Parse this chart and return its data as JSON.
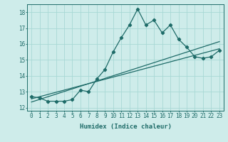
{
  "title": "",
  "xlabel": "Humidex (Indice chaleur)",
  "ylabel": "",
  "xlim": [
    -0.5,
    23.5
  ],
  "ylim": [
    11.8,
    18.5
  ],
  "yticks": [
    12,
    13,
    14,
    15,
    16,
    17,
    18
  ],
  "xticks": [
    0,
    1,
    2,
    3,
    4,
    5,
    6,
    7,
    8,
    9,
    10,
    11,
    12,
    13,
    14,
    15,
    16,
    17,
    18,
    19,
    20,
    21,
    22,
    23
  ],
  "xtick_labels": [
    "0",
    "1",
    "2",
    "3",
    "4",
    "5",
    "6",
    "7",
    "8",
    "9",
    "10",
    "11",
    "12",
    "13",
    "14",
    "15",
    "16",
    "17",
    "18",
    "19",
    "20",
    "21",
    "22",
    "23"
  ],
  "bg_color": "#ceecea",
  "grid_color": "#a8d8d5",
  "line_color": "#1e6b68",
  "main_line_x": [
    0,
    1,
    2,
    3,
    4,
    5,
    6,
    7,
    8,
    9,
    10,
    11,
    12,
    13,
    14,
    15,
    16,
    17,
    18,
    19,
    20,
    21,
    22,
    23
  ],
  "main_line_y": [
    12.7,
    12.6,
    12.4,
    12.4,
    12.4,
    12.5,
    13.1,
    13.0,
    13.8,
    14.4,
    15.5,
    16.4,
    17.2,
    18.2,
    17.2,
    17.5,
    16.7,
    17.2,
    16.3,
    15.8,
    15.2,
    15.1,
    15.2,
    15.6
  ],
  "trend1_x": [
    0,
    23
  ],
  "trend1_y": [
    12.55,
    15.7
  ],
  "trend2_x": [
    0,
    23
  ],
  "trend2_y": [
    12.35,
    16.15
  ],
  "marker": "D",
  "marker_size": 2.2,
  "linewidth": 0.9
}
